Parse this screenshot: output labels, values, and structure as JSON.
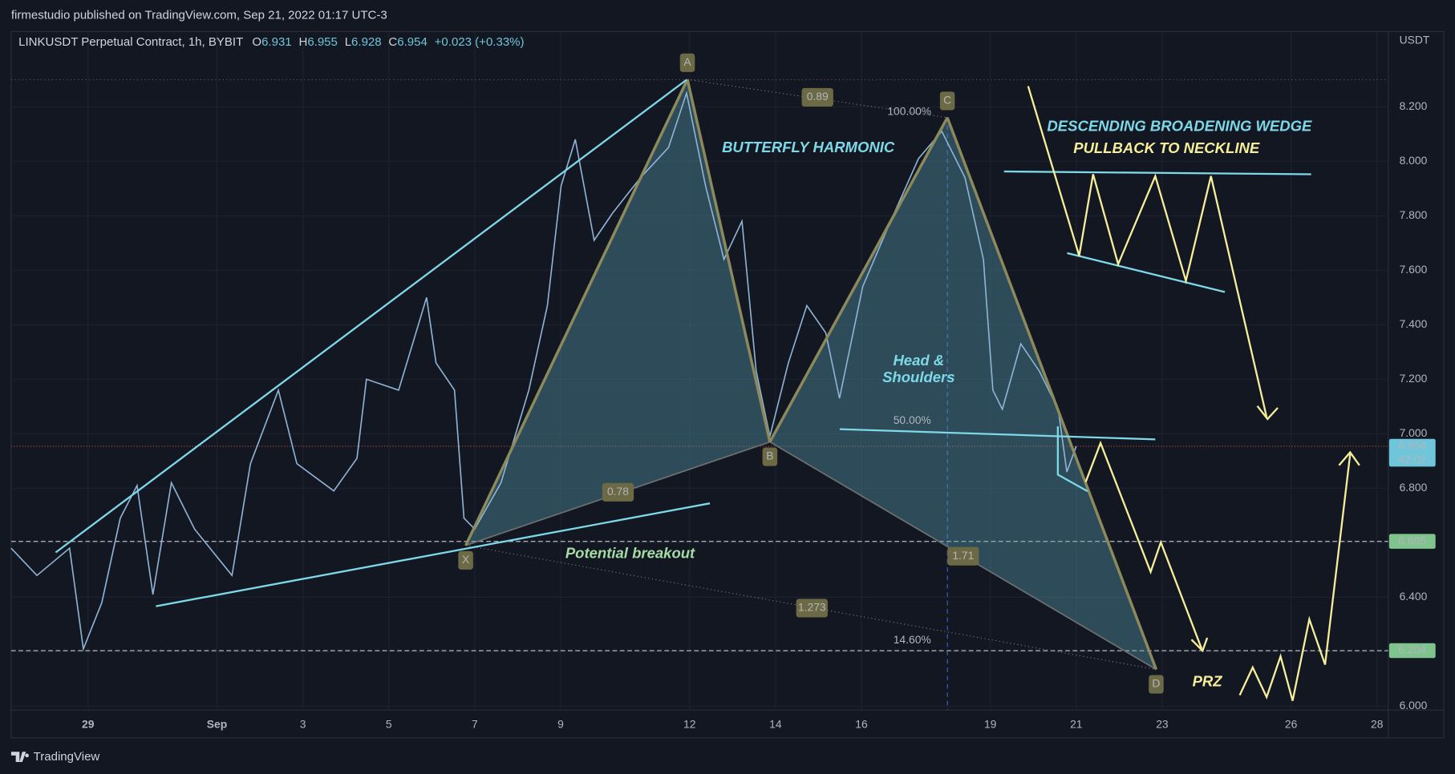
{
  "header": {
    "publisher": "firmestudio published on TradingView.com, Sep 21, 2022 01:17 UTC-3",
    "footer": "TradingView"
  },
  "chart_data": {
    "type": "line",
    "symbol": "LINKUSDT Perpetual Contract, 1h, BYBIT",
    "ohlc_labels": [
      "O",
      "H",
      "L",
      "C"
    ],
    "ohlc": [
      6.931,
      6.955,
      6.928,
      6.954
    ],
    "change_label": "+0.023 (+0.33%)",
    "unit": "USDT",
    "color": "#8fb4d6",
    "x": [
      -3.79,
      -3.19,
      -2.43,
      -2.11,
      -1.68,
      -1.25,
      -0.86,
      -0.49,
      -0.06,
      0.48,
      1.35,
      1.78,
      2.43,
      2.86,
      3.72,
      4.26,
      4.48,
      5.23,
      5.88,
      6.1,
      6.53,
      6.75,
      7.0,
      7.61,
      8.26,
      8.69,
      9.01,
      9.34,
      9.78,
      10.21,
      10.86,
      11.51,
      11.93,
      12.37,
      12.8,
      13.22,
      13.55,
      13.87,
      14.3,
      14.73,
      15.17,
      15.49,
      16.03,
      16.68,
      17.33,
      17.87,
      18.41,
      18.84,
      19.06,
      19.28,
      19.71,
      20.14,
      20.58,
      20.78,
      21.0
    ],
    "values": [
      6.58,
      6.48,
      6.58,
      6.21,
      6.38,
      6.69,
      6.81,
      6.41,
      6.82,
      6.65,
      6.48,
      6.89,
      7.16,
      6.89,
      6.79,
      6.91,
      7.2,
      7.16,
      7.5,
      7.26,
      7.16,
      6.69,
      6.65,
      6.82,
      7.16,
      7.47,
      7.91,
      8.08,
      7.71,
      7.81,
      7.94,
      8.05,
      8.25,
      7.91,
      7.64,
      7.78,
      7.23,
      6.99,
      7.26,
      7.47,
      7.37,
      7.13,
      7.54,
      7.78,
      8.01,
      8.11,
      7.94,
      7.64,
      7.16,
      7.09,
      7.33,
      7.23,
      7.09,
      6.86,
      6.954
    ],
    "xlim": [
      -3.79,
      28.26
    ],
    "xticks": [
      {
        "value": -2,
        "label": "29"
      },
      {
        "value": 1,
        "label": "Sep"
      },
      3,
      5,
      7,
      9,
      12,
      14,
      16,
      19,
      21,
      23,
      26,
      28
    ],
    "ylim": [
      5.986,
      8.476
    ],
    "yticks": [
      {
        "value": 6.0,
        "label": "6.000"
      },
      {
        "value": 6.2,
        "label": "6.200"
      },
      {
        "value": 6.4,
        "label": "6.400"
      },
      {
        "value": 6.6,
        "label": "6.600"
      },
      {
        "value": 6.8,
        "label": "6.800"
      },
      {
        "value": 7.0,
        "label": "7.000"
      },
      {
        "value": 7.2,
        "label": "7.200"
      },
      {
        "value": 7.4,
        "label": "7.400"
      },
      {
        "value": 7.6,
        "label": "7.600"
      },
      {
        "value": 7.8,
        "label": "7.800"
      },
      {
        "value": 8.0,
        "label": "8.000"
      },
      {
        "value": 8.2,
        "label": "8.200"
      }
    ],
    "grid": true,
    "price_lines": [
      6.954,
      6.605,
      6.204
    ],
    "price_line_colors": [
      "#6fc6da",
      "#7ec48c",
      "#7ec48c"
    ],
    "countdown": "42:02",
    "pattern": {
      "name": "BUTTERFLY HARMONIC",
      "points": [
        {
          "label": "X",
          "x": 6.79,
          "y": 6.59
        },
        {
          "label": "A",
          "x": 11.95,
          "y": 8.3
        },
        {
          "label": "B",
          "x": 13.87,
          "y": 6.97
        },
        {
          "label": "C",
          "x": 18.0,
          "y": 8.16
        },
        {
          "label": "D",
          "x": 22.86,
          "y": 6.135
        }
      ],
      "ratios": [
        "0.89",
        "0.78",
        "1.71",
        "1.273"
      ],
      "levels": [
        "100.00%",
        "50.00%",
        "14.60%"
      ]
    },
    "annotations": {
      "wedge": "DESCENDING BROADENING WEDGE",
      "pullback": "PULLBACK TO NECKLINE",
      "head_shoulders": [
        "Head &",
        "Shoulders"
      ],
      "breakout": "Potential breakout",
      "prz": "PRZ"
    }
  }
}
